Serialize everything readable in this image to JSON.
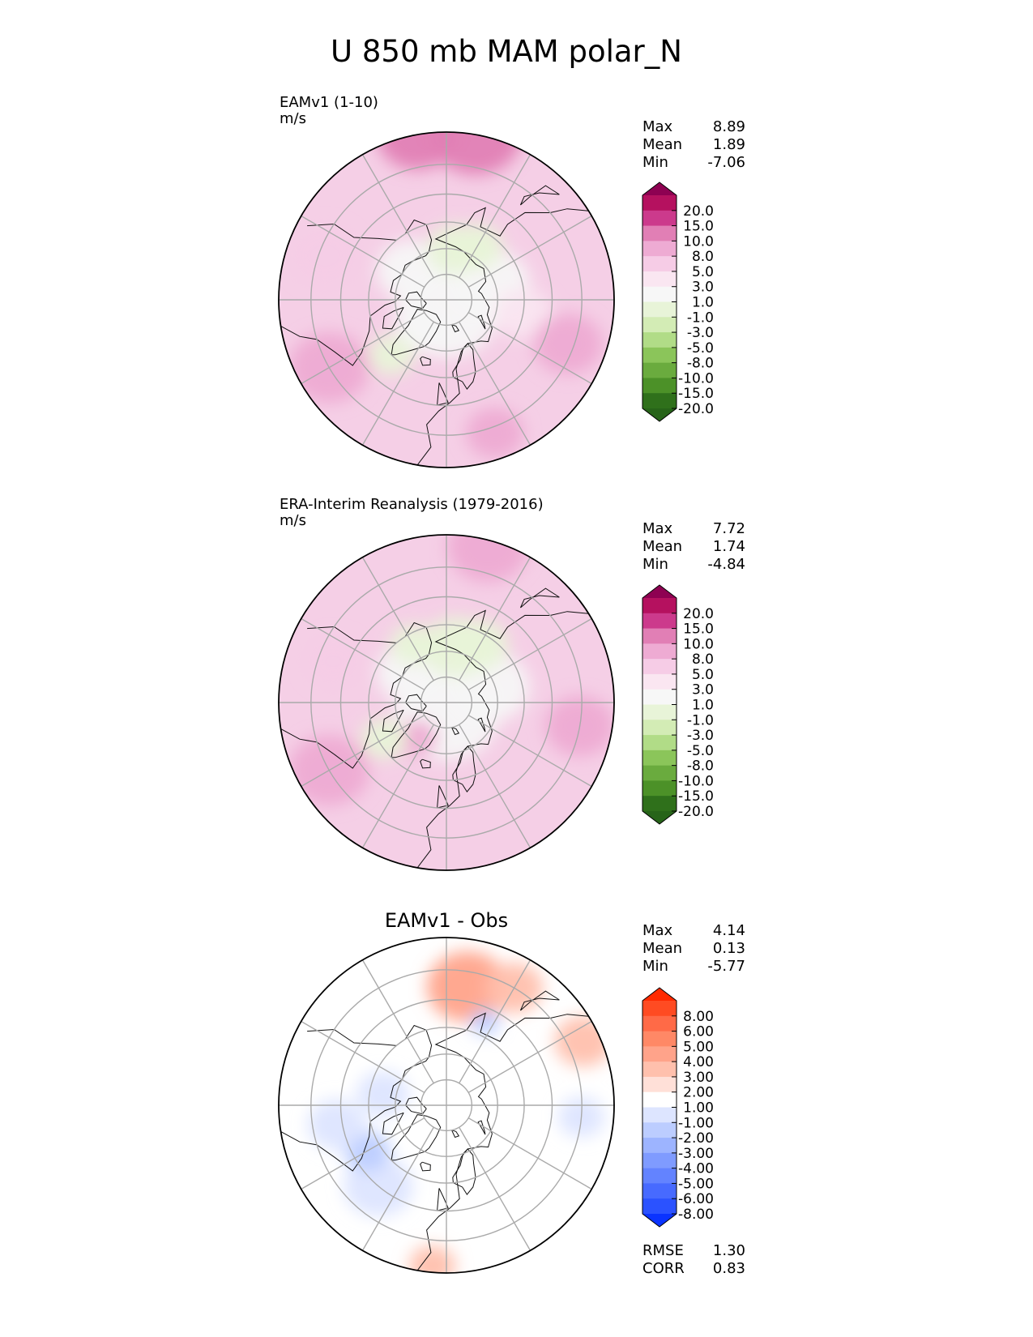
{
  "chart_data": {
    "title": "U 850 mb MAM polar_N",
    "type": "heatmap",
    "panels": [
      {
        "id": "test",
        "label": "EAMv1 (1-10)",
        "units": "m/s",
        "stats": {
          "Max": "8.89",
          "Mean": "1.89",
          "Min": "-7.06"
        },
        "colorbar": {
          "levels": [
            "20.0",
            "15.0",
            "10.0",
            "8.0",
            "5.0",
            "3.0",
            "1.0",
            "-1.0",
            "-3.0",
            "-5.0",
            "-8.0",
            "-10.0",
            "-15.0",
            "-20.0"
          ],
          "colors": [
            "#8e0152",
            "#b5115f",
            "#cc3a8c",
            "#e17fb5",
            "#eeabd3",
            "#f6cce6",
            "#fae6f1",
            "#f7f7f7",
            "#e8f4d8",
            "#d3ecb5",
            "#b1dc87",
            "#8bc55a",
            "#6aab3e",
            "#4c9128",
            "#2f701b",
            "#276419"
          ]
        },
        "field": {
          "base": "#f5cfe6",
          "patches": [
            {
              "lat": 85,
              "lon": 0,
              "r": 18,
              "v": 0
            },
            {
              "lat": 72,
              "lon": -130,
              "r": 12,
              "v": 0
            },
            {
              "lat": 72,
              "lon": 110,
              "r": 14,
              "v": 0
            },
            {
              "lat": 70,
              "lon": 170,
              "r": 10,
              "v": -3
            },
            {
              "lat": 66,
              "lon": 150,
              "r": 9,
              "v": -3
            },
            {
              "lat": 75,
              "lon": -40,
              "r": 9,
              "v": 0
            },
            {
              "lat": 60,
              "lon": -45,
              "r": 8,
              "v": -3
            },
            {
              "lat": 60,
              "lon": 80,
              "r": 10,
              "v": 2
            },
            {
              "lat": 30,
              "lon": 170,
              "r": 16,
              "v": 8
            },
            {
              "lat": 30,
              "lon": -170,
              "r": 14,
              "v": 8
            },
            {
              "lat": 40,
              "lon": -60,
              "r": 14,
              "v": 6
            },
            {
              "lat": 42,
              "lon": -110,
              "r": 12,
              "v": 4
            },
            {
              "lat": 42,
              "lon": 70,
              "r": 12,
              "v": 6
            },
            {
              "lat": 38,
              "lon": 20,
              "r": 10,
              "v": 5
            }
          ]
        },
        "extent_lat": 30
      },
      {
        "id": "reference",
        "label": "ERA-Interim Reanalysis (1979-2016)",
        "units": "m/s",
        "stats": {
          "Max": "7.72",
          "Mean": "1.74",
          "Min": "-4.84"
        },
        "colorbar": {
          "levels": [
            "20.0",
            "15.0",
            "10.0",
            "8.0",
            "5.0",
            "3.0",
            "1.0",
            "-1.0",
            "-3.0",
            "-5.0",
            "-8.0",
            "-10.0",
            "-15.0",
            "-20.0"
          ],
          "colors": [
            "#8e0152",
            "#b5115f",
            "#cc3a8c",
            "#e17fb5",
            "#eeabd3",
            "#f6cce6",
            "#fae6f1",
            "#f7f7f7",
            "#e8f4d8",
            "#d3ecb5",
            "#b1dc87",
            "#8bc55a",
            "#6aab3e",
            "#4c9128",
            "#2f701b",
            "#276419"
          ]
        },
        "field": {
          "base": "#f5cfe6",
          "patches": [
            {
              "lat": 85,
              "lon": 0,
              "r": 18,
              "v": 0
            },
            {
              "lat": 72,
              "lon": -130,
              "r": 12,
              "v": 0
            },
            {
              "lat": 72,
              "lon": 110,
              "r": 14,
              "v": -1
            },
            {
              "lat": 68,
              "lon": 170,
              "r": 12,
              "v": -3
            },
            {
              "lat": 64,
              "lon": 150,
              "r": 10,
              "v": -3
            },
            {
              "lat": 64,
              "lon": -150,
              "r": 8,
              "v": -3
            },
            {
              "lat": 72,
              "lon": -40,
              "r": 7,
              "v": 5
            },
            {
              "lat": 62,
              "lon": -60,
              "r": 8,
              "v": -3
            },
            {
              "lat": 32,
              "lon": 165,
              "r": 14,
              "v": 7
            },
            {
              "lat": 40,
              "lon": -60,
              "r": 14,
              "v": 5
            },
            {
              "lat": 40,
              "lon": 80,
              "r": 12,
              "v": 6
            },
            {
              "lat": 45,
              "lon": -110,
              "r": 10,
              "v": 3
            }
          ]
        },
        "extent_lat": 30
      },
      {
        "id": "diff",
        "label": "EAMv1 - Obs",
        "units": "",
        "stats": {
          "Max": "4.14",
          "Mean": "0.13",
          "Min": "-5.77"
        },
        "colorbar": {
          "levels": [
            "8.00",
            "6.00",
            "5.00",
            "4.00",
            "3.00",
            "2.00",
            "1.00",
            "-1.00",
            "-2.00",
            "-3.00",
            "-4.00",
            "-5.00",
            "-6.00",
            "-8.00"
          ],
          "colors": [
            "#ff2a00",
            "#ff4b22",
            "#ff6a47",
            "#ff8866",
            "#ffa38a",
            "#ffc0ad",
            "#ffe0d8",
            "#ffffff",
            "#dde5ff",
            "#bccdff",
            "#9db4ff",
            "#7f9bff",
            "#6383ff",
            "#476aff",
            "#2b52ff",
            "#0a33ff"
          ]
        },
        "field": {
          "base": "#ffffff",
          "patches": [
            {
              "lat": 45,
              "lon": 170,
              "r": 14,
              "v": 3
            },
            {
              "lat": 40,
              "lon": 150,
              "r": 10,
              "v": 2
            },
            {
              "lat": 35,
              "lon": 115,
              "r": 10,
              "v": 2
            },
            {
              "lat": 32,
              "lon": -5,
              "r": 8,
              "v": 2
            },
            {
              "lat": 65,
              "lon": -100,
              "r": 9,
              "v": -2
            },
            {
              "lat": 55,
              "lon": 155,
              "r": 5,
              "v": -3
            },
            {
              "lat": 50,
              "lon": -40,
              "r": 12,
              "v": -2
            },
            {
              "lat": 55,
              "lon": -60,
              "r": 8,
              "v": -3
            },
            {
              "lat": 48,
              "lon": -80,
              "r": 10,
              "v": -2
            },
            {
              "lat": 40,
              "lon": 85,
              "r": 8,
              "v": -2
            }
          ]
        },
        "extent_lat": 30,
        "metrics": {
          "RMSE": "1.30",
          "CORR": "0.83"
        }
      }
    ],
    "projection": "north polar stereographic",
    "grid": {
      "latitudes": [
        40,
        50,
        60,
        70,
        80
      ],
      "meridians_every_deg": 30
    },
    "colors": {
      "coast": "#111111",
      "grid": "#aaaaaa",
      "border": "#000000"
    }
  }
}
